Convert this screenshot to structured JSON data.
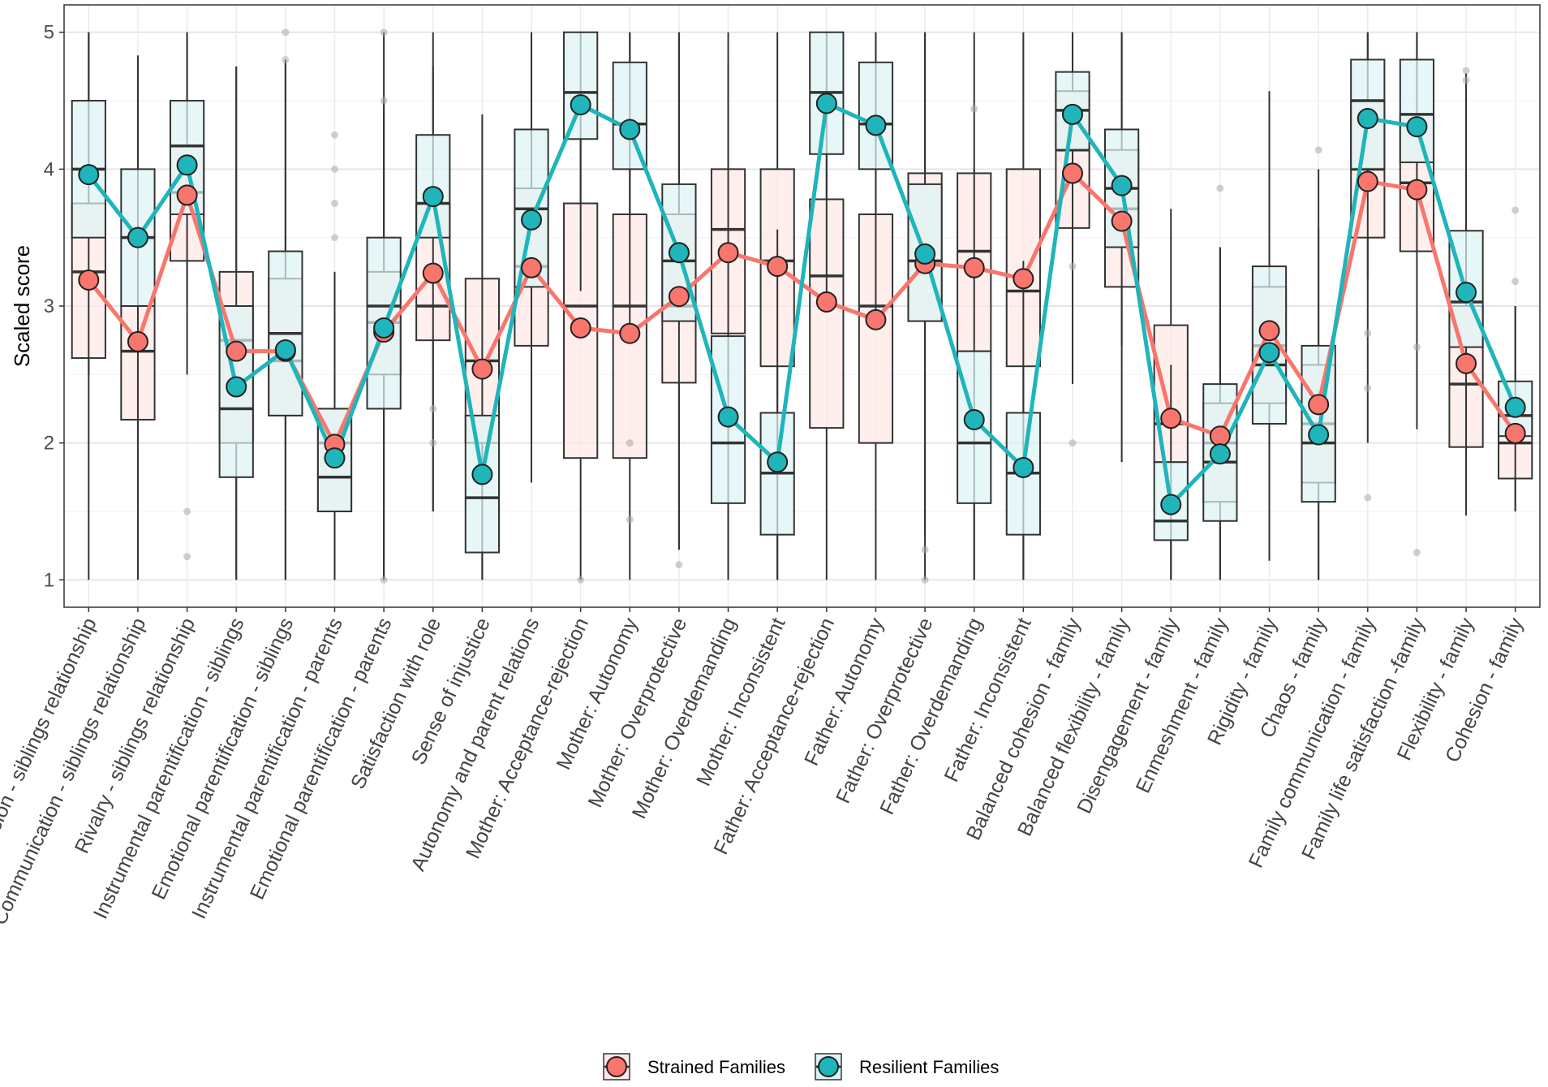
{
  "chart_data": {
    "type": "box",
    "title": "",
    "xlabel": "",
    "ylabel": "Scaled score",
    "ylim": [
      0.8,
      5.2
    ],
    "yticks": [
      1,
      2,
      3,
      4,
      5
    ],
    "grid": true,
    "legend_position": "bottom",
    "categories": [
      "Cohesion - siblings relationship",
      "Communication - siblings relationship",
      "Rivalry - siblings relationship",
      "Instrumental parentification - siblings",
      "Emotional parentification - siblings",
      "Instrumental parentification - parents",
      "Emotional parentification - parents",
      "Satisfaction with role",
      "Sense of injustice",
      "Autonomy and parent relations",
      "Mother: Acceptance-rejection",
      "Mother: Autonomy",
      "Mother: Overprotective",
      "Mother: Overdemanding",
      "Mother: Inconsistent",
      "Father: Acceptance-rejection",
      "Father: Autonomy",
      "Father: Overprotective",
      "Father: Overdemanding",
      "Father: Inconsistent",
      "Balanced cohesion - family",
      "Balanced flexibility - family",
      "Disengagement - family",
      "Enmeshment - family",
      "Rigidity - family",
      "Chaos - family",
      "Family communication - family",
      "Family life satisfaction -family",
      "Flexibility - family",
      "Cohesion - family"
    ],
    "series": [
      {
        "name": "Strained Families",
        "color": "#F8766D",
        "fill": "#FDE8E6",
        "means": [
          3.19,
          2.74,
          3.81,
          2.67,
          2.67,
          1.99,
          2.81,
          3.24,
          2.54,
          3.28,
          2.84,
          2.8,
          3.07,
          3.39,
          3.29,
          3.03,
          2.9,
          3.31,
          3.28,
          3.2,
          3.97,
          3.62,
          2.18,
          2.05,
          2.82,
          2.28,
          3.91,
          3.85,
          2.58,
          2.07
        ],
        "boxes": [
          {
            "q1": 2.62,
            "median": 3.25,
            "q3": 3.75,
            "low": 1.0,
            "high": 5.0
          },
          {
            "q1": 2.17,
            "median": 2.67,
            "q3": 3.0,
            "low": 1.0,
            "high": 4.83
          },
          {
            "q1": 3.33,
            "median": 3.83,
            "q3": 4.17,
            "low": 2.5,
            "high": 5.0
          },
          {
            "q1": 2.0,
            "median": 2.75,
            "q3": 3.25,
            "low": 1.0,
            "high": 4.75
          },
          {
            "q1": 2.2,
            "median": 2.6,
            "q3": 3.2,
            "low": 1.0,
            "high": 4.8
          },
          {
            "q1": 1.5,
            "median": 2.0,
            "q3": 2.25,
            "low": 1.0,
            "high": 3.25
          },
          {
            "q1": 2.5,
            "median": 2.88,
            "q3": 3.25,
            "low": 1.0,
            "high": 4.5
          },
          {
            "q1": 2.75,
            "median": 3.0,
            "q3": 3.75,
            "low": 1.5,
            "high": 4.75
          },
          {
            "q1": 2.0,
            "median": 2.6,
            "q3": 3.2,
            "low": 1.0,
            "high": 4.4
          },
          {
            "q1": 2.71,
            "median": 3.29,
            "q3": 3.86,
            "low": 1.71,
            "high": 5.0
          },
          {
            "q1": 1.89,
            "median": 3.0,
            "q3": 3.75,
            "low": 1.0,
            "high": 5.0
          },
          {
            "q1": 1.89,
            "median": 3.0,
            "q3": 3.67,
            "low": 1.0,
            "high": 5.0
          },
          {
            "q1": 2.44,
            "median": 3.0,
            "q3": 3.67,
            "low": 1.22,
            "high": 5.0
          },
          {
            "q1": 2.8,
            "median": 3.56,
            "q3": 4.0,
            "low": 1.0,
            "high": 5.0
          },
          {
            "q1": 2.56,
            "median": 3.33,
            "q3": 4.0,
            "low": 1.0,
            "high": 5.0
          },
          {
            "q1": 2.11,
            "median": 3.22,
            "q3": 3.78,
            "low": 1.0,
            "high": 5.0
          },
          {
            "q1": 2.0,
            "median": 3.0,
            "q3": 3.67,
            "low": 1.0,
            "high": 5.0
          },
          {
            "q1": 2.89,
            "median": 3.33,
            "q3": 3.97,
            "low": 1.0,
            "high": 5.0
          },
          {
            "q1": 2.67,
            "median": 3.4,
            "q3": 3.97,
            "low": 1.0,
            "high": 5.0
          },
          {
            "q1": 2.56,
            "median": 3.11,
            "q3": 4.0,
            "low": 1.0,
            "high": 5.0
          },
          {
            "q1": 3.57,
            "median": 4.14,
            "q3": 4.57,
            "low": 2.43,
            "high": 5.0
          },
          {
            "q1": 3.14,
            "median": 3.71,
            "q3": 4.14,
            "low": 1.86,
            "high": 5.0
          },
          {
            "q1": 1.86,
            "median": 2.14,
            "q3": 2.86,
            "low": 1.0,
            "high": 3.71
          },
          {
            "q1": 1.57,
            "median": 2.0,
            "q3": 2.29,
            "low": 1.0,
            "high": 3.43
          },
          {
            "q1": 2.29,
            "median": 2.71,
            "q3": 3.14,
            "low": 1.14,
            "high": 4.57
          },
          {
            "q1": 1.71,
            "median": 2.14,
            "q3": 2.57,
            "low": 1.0,
            "high": 4.0
          },
          {
            "q1": 3.5,
            "median": 4.0,
            "q3": 4.5,
            "low": 2.0,
            "high": 5.0
          },
          {
            "q1": 3.4,
            "median": 3.9,
            "q3": 4.4,
            "low": 2.1,
            "high": 5.0
          },
          {
            "q1": 1.97,
            "median": 2.43,
            "q3": 3.0,
            "low": 1.47,
            "high": 4.7
          },
          {
            "q1": 1.74,
            "median": 2.0,
            "q3": 2.2,
            "low": 1.5,
            "high": 3.0
          }
        ]
      },
      {
        "name": "Resilient Families",
        "color": "#1FB5BA",
        "fill": "#DDF4F4",
        "means": [
          3.96,
          3.5,
          4.03,
          2.41,
          2.68,
          1.89,
          2.84,
          3.8,
          1.77,
          3.63,
          4.47,
          4.29,
          3.39,
          2.19,
          1.86,
          4.48,
          4.32,
          3.38,
          2.17,
          1.82,
          4.4,
          3.88,
          1.55,
          1.92,
          2.66,
          2.06,
          4.37,
          4.31,
          3.1,
          2.26
        ],
        "boxes": [
          {
            "q1": 3.5,
            "median": 4.0,
            "q3": 4.5,
            "low": 2.5,
            "high": 5.0
          },
          {
            "q1": 3.0,
            "median": 3.5,
            "q3": 4.0,
            "low": 2.0,
            "high": 4.83
          },
          {
            "q1": 3.67,
            "median": 4.17,
            "q3": 4.5,
            "low": 3.0,
            "high": 5.0
          },
          {
            "q1": 1.75,
            "median": 2.25,
            "q3": 3.0,
            "low": 1.0,
            "high": 4.75
          },
          {
            "q1": 2.2,
            "median": 2.8,
            "q3": 3.4,
            "low": 1.0,
            "high": 4.8
          },
          {
            "q1": 1.5,
            "median": 1.75,
            "q3": 2.25,
            "low": 1.0,
            "high": 3.25
          },
          {
            "q1": 2.25,
            "median": 3.0,
            "q3": 3.5,
            "low": 1.0,
            "high": 5.0
          },
          {
            "q1": 3.5,
            "median": 3.75,
            "q3": 4.25,
            "low": 1.5,
            "high": 5.0
          },
          {
            "q1": 1.2,
            "median": 1.6,
            "q3": 2.2,
            "low": 1.0,
            "high": 3.2
          },
          {
            "q1": 3.14,
            "median": 3.71,
            "q3": 4.29,
            "low": 2.0,
            "high": 5.0
          },
          {
            "q1": 4.22,
            "median": 4.56,
            "q3": 5.0,
            "low": 3.11,
            "high": 5.0
          },
          {
            "q1": 4.0,
            "median": 4.33,
            "q3": 4.78,
            "low": 2.78,
            "high": 5.0
          },
          {
            "q1": 2.89,
            "median": 3.33,
            "q3": 3.89,
            "low": 1.22,
            "high": 5.0
          },
          {
            "q1": 1.56,
            "median": 2.0,
            "q3": 2.78,
            "low": 1.0,
            "high": 4.78
          },
          {
            "q1": 1.33,
            "median": 1.78,
            "q3": 2.22,
            "low": 1.0,
            "high": 3.56
          },
          {
            "q1": 4.11,
            "median": 4.56,
            "q3": 5.0,
            "low": 3.0,
            "high": 5.0
          },
          {
            "q1": 4.0,
            "median": 4.33,
            "q3": 4.78,
            "low": 2.89,
            "high": 5.0
          },
          {
            "q1": 2.89,
            "median": 3.33,
            "q3": 3.89,
            "low": 1.33,
            "high": 5.0
          },
          {
            "q1": 1.56,
            "median": 2.0,
            "q3": 2.67,
            "low": 1.0,
            "high": 4.0
          },
          {
            "q1": 1.33,
            "median": 1.78,
            "q3": 2.22,
            "low": 1.0,
            "high": 3.33
          },
          {
            "q1": 4.14,
            "median": 4.43,
            "q3": 4.71,
            "low": 3.29,
            "high": 5.0
          },
          {
            "q1": 3.43,
            "median": 3.86,
            "q3": 4.29,
            "low": 2.71,
            "high": 5.0
          },
          {
            "q1": 1.29,
            "median": 1.43,
            "q3": 1.86,
            "low": 1.0,
            "high": 2.57
          },
          {
            "q1": 1.43,
            "median": 1.86,
            "q3": 2.43,
            "low": 1.0,
            "high": 3.43
          },
          {
            "q1": 2.14,
            "median": 2.57,
            "q3": 3.29,
            "low": 1.14,
            "high": 4.43
          },
          {
            "q1": 1.57,
            "median": 2.0,
            "q3": 2.71,
            "low": 1.0,
            "high": 3.57
          },
          {
            "q1": 4.0,
            "median": 4.5,
            "q3": 4.8,
            "low": 3.2,
            "high": 5.0
          },
          {
            "q1": 4.05,
            "median": 4.4,
            "q3": 4.8,
            "low": 3.4,
            "high": 5.0
          },
          {
            "q1": 2.7,
            "median": 3.03,
            "q3": 3.55,
            "low": 1.9,
            "high": 4.7
          },
          {
            "q1": 2.05,
            "median": 2.2,
            "q3": 2.45,
            "low": 1.5,
            "high": 3.0
          }
        ]
      }
    ],
    "outliers": [
      {
        "category_index": 2,
        "values": [
          1.5,
          1.17
        ]
      },
      {
        "category_index": 4,
        "values": [
          5.0,
          4.8
        ]
      },
      {
        "category_index": 5,
        "values": [
          4.25,
          4.0,
          3.75,
          3.5
        ]
      },
      {
        "category_index": 6,
        "values": [
          5.0,
          4.5,
          1.0
        ]
      },
      {
        "category_index": 7,
        "values": [
          2.25,
          2.0
        ]
      },
      {
        "category_index": 10,
        "values": [
          1.0
        ]
      },
      {
        "category_index": 11,
        "values": [
          2.0,
          1.44
        ]
      },
      {
        "category_index": 12,
        "values": [
          1.11
        ]
      },
      {
        "category_index": 17,
        "values": [
          1.22,
          1.0
        ]
      },
      {
        "category_index": 18,
        "values": [
          4.44
        ]
      },
      {
        "category_index": 20,
        "values": [
          3.29,
          2.0
        ]
      },
      {
        "category_index": 23,
        "values": [
          3.86
        ]
      },
      {
        "category_index": 25,
        "values": [
          4.14
        ]
      },
      {
        "category_index": 26,
        "values": [
          2.8,
          2.4,
          1.6
        ]
      },
      {
        "category_index": 27,
        "values": [
          2.7,
          1.2
        ]
      },
      {
        "category_index": 28,
        "values": [
          4.72,
          4.65
        ]
      },
      {
        "category_index": 29,
        "values": [
          3.7,
          3.18
        ]
      }
    ]
  }
}
